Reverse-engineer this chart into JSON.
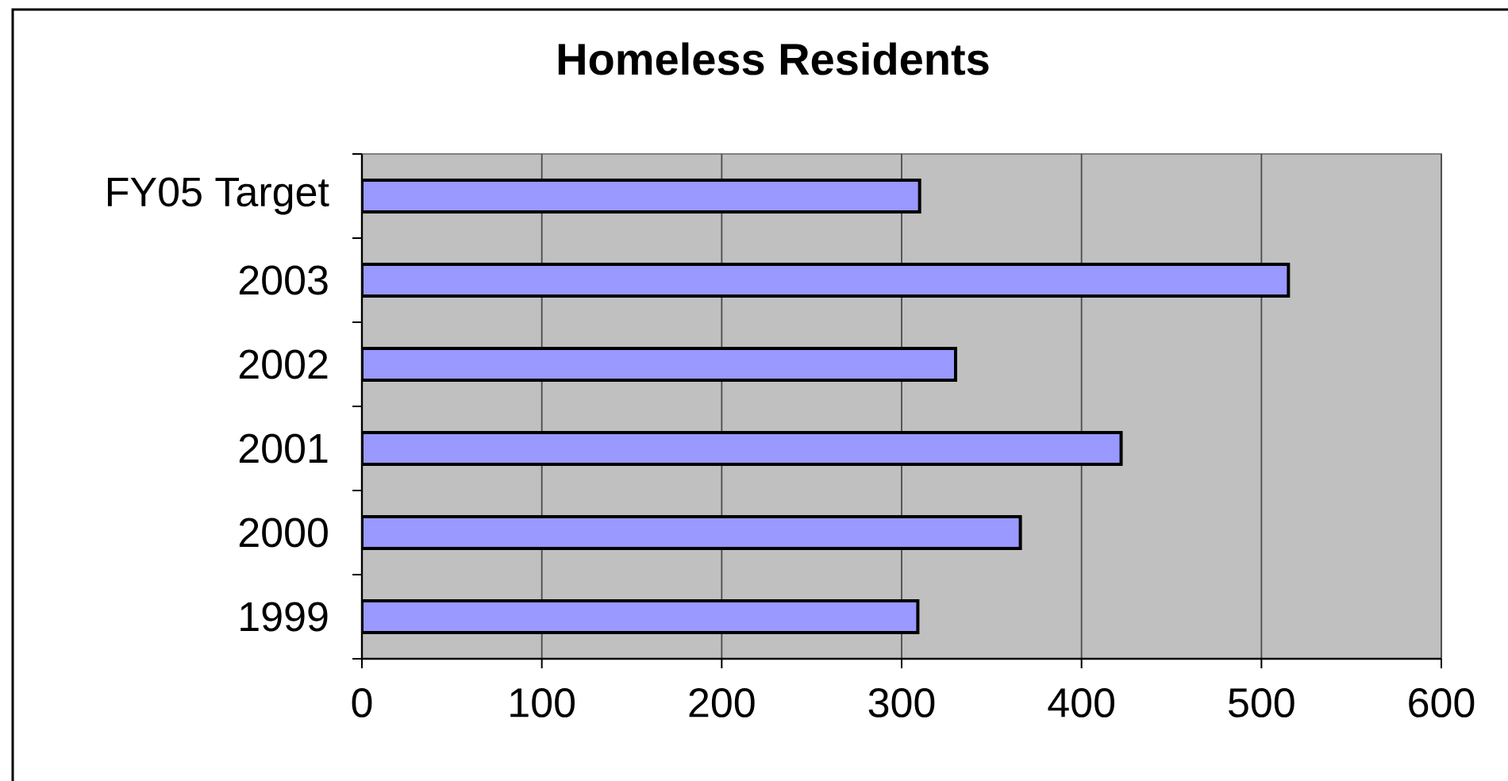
{
  "chart_data": {
    "type": "bar",
    "orientation": "horizontal",
    "title": "Homeless Residents",
    "categories": [
      "FY05 Target",
      "2003",
      "2002",
      "2001",
      "2000",
      "1999"
    ],
    "values": [
      310,
      515,
      330,
      422,
      366,
      309
    ],
    "color": "#9999ff",
    "xlim": [
      0,
      600
    ],
    "xticks": [
      0,
      100,
      200,
      300,
      400,
      500,
      600
    ],
    "grid": "x"
  }
}
